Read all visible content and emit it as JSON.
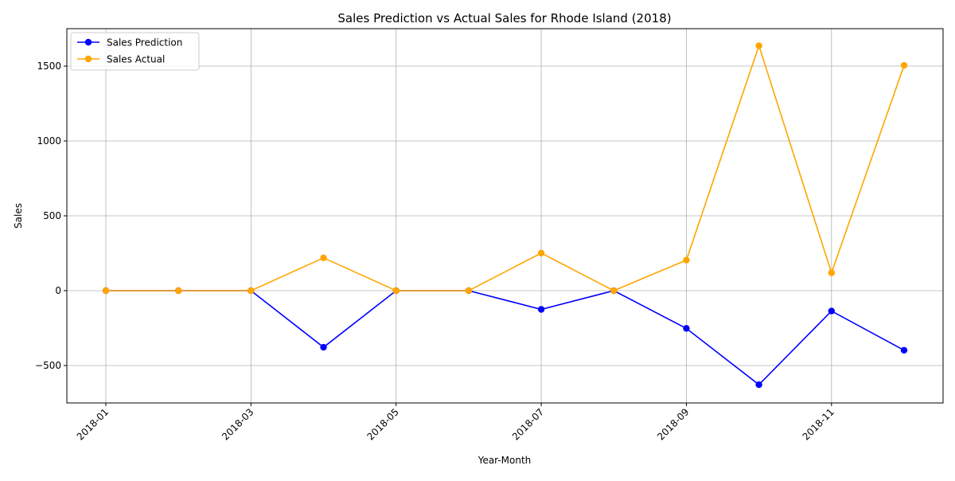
{
  "chart_data": {
    "type": "line",
    "title": "Sales Prediction vs Actual Sales for Rhode Island (2018)",
    "xlabel": "Year-Month",
    "ylabel": "Sales",
    "x": [
      "2018-01",
      "2018-02",
      "2018-03",
      "2018-04",
      "2018-05",
      "2018-06",
      "2018-07",
      "2018-08",
      "2018-09",
      "2018-10",
      "2018-11",
      "2018-12"
    ],
    "x_tick_labels": [
      "2018-01",
      "2018-03",
      "2018-05",
      "2018-07",
      "2018-09",
      "2018-11"
    ],
    "y_ticks": [
      -500,
      0,
      500,
      1000,
      1500
    ],
    "y_tick_labels": [
      "−500",
      "0",
      "500",
      "1000",
      "1500"
    ],
    "ylim": [
      -750,
      1750
    ],
    "grid": true,
    "legend_position": "upper-left",
    "series": [
      {
        "name": "Sales Prediction",
        "color": "#0000ff",
        "marker": "circle",
        "values": [
          0,
          0,
          0,
          -378,
          0,
          0,
          -125,
          0,
          -252,
          -628,
          -136,
          -398
        ]
      },
      {
        "name": "Sales Actual",
        "color": "#ffa500",
        "marker": "circle",
        "values": [
          0,
          0,
          0,
          219,
          0,
          0,
          251,
          0,
          204,
          1636,
          119,
          1505
        ]
      }
    ]
  }
}
